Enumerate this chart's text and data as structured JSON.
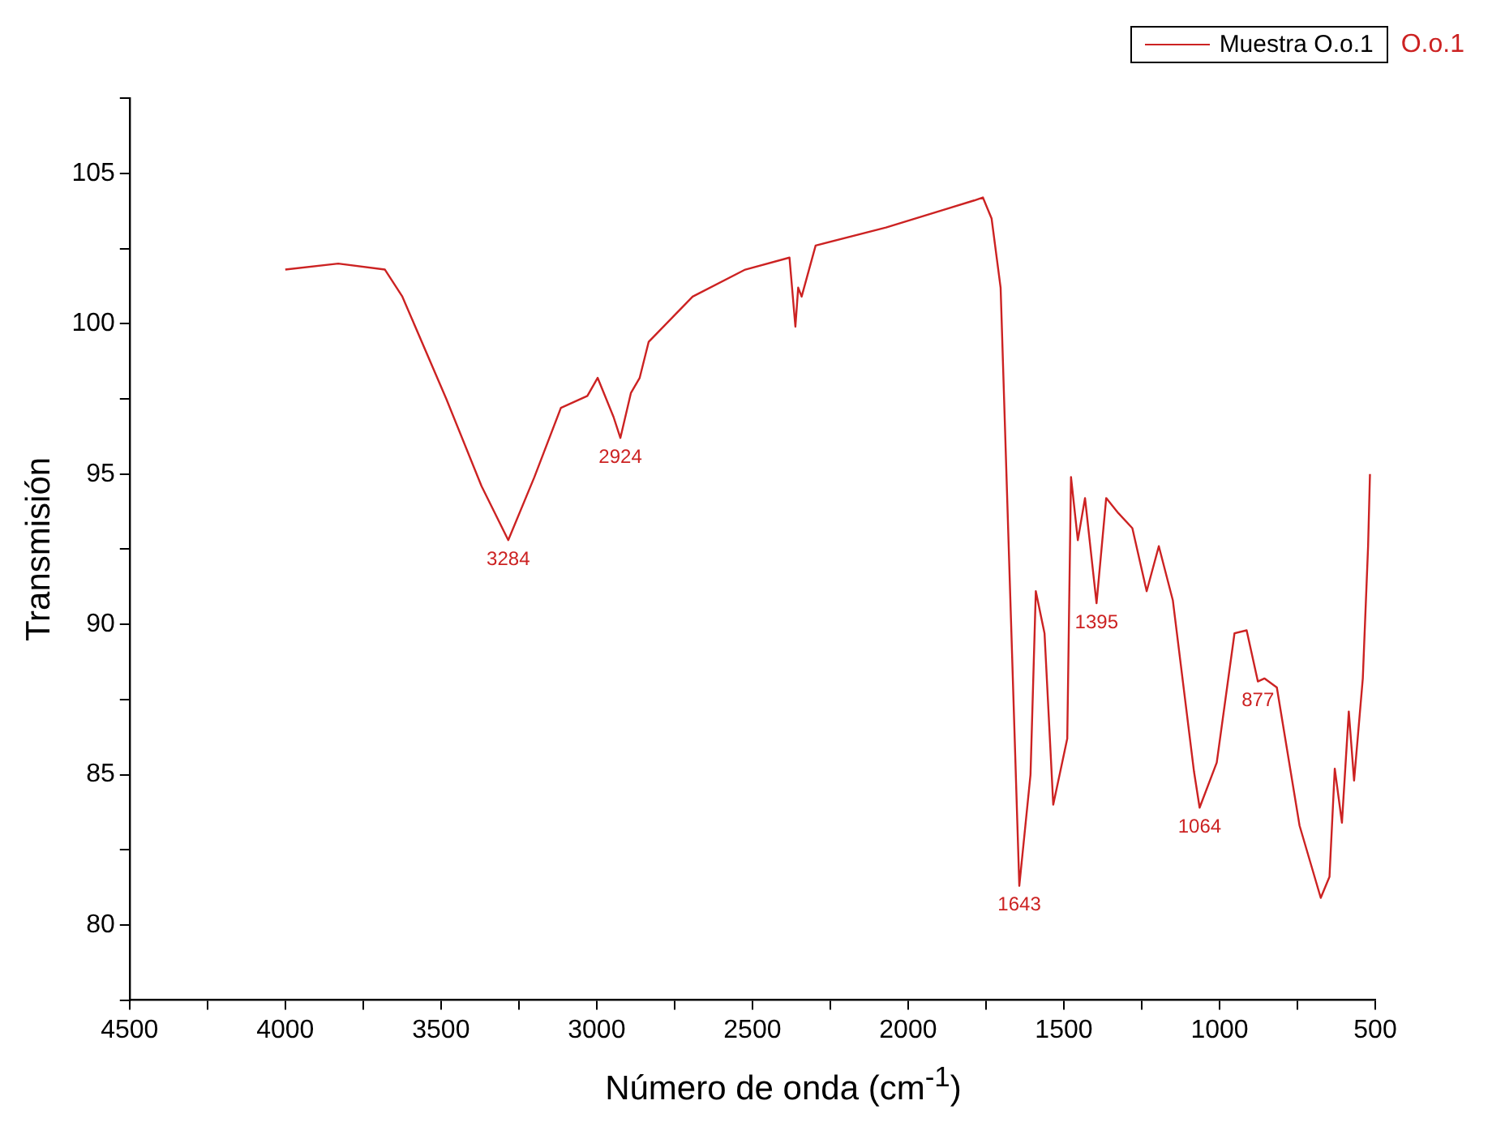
{
  "chart_data": {
    "type": "line",
    "xlabel": "Número de onda (cm$^{-1}$)",
    "ylabel": "Transmisión",
    "xlim": [
      4500,
      500
    ],
    "ylim": [
      77.5,
      107.5
    ],
    "xticks": [
      4500,
      {
        "value": 4250,
        "label": null
      },
      4000,
      {
        "value": 3750,
        "label": null
      },
      3500,
      {
        "value": 3250,
        "label": null
      },
      3000,
      {
        "value": 2750,
        "label": null
      },
      2500,
      {
        "value": 2250,
        "label": null
      },
      2000,
      {
        "value": 1750,
        "label": null
      },
      1500,
      {
        "value": 1250,
        "label": null
      },
      1000,
      {
        "value": 750,
        "label": null
      },
      500
    ],
    "yticks": [
      {
        "value": 77.5,
        "label": null
      },
      80,
      {
        "value": 82.5,
        "label": null
      },
      85,
      {
        "value": 87.5,
        "label": null
      },
      90,
      {
        "value": 92.5,
        "label": null
      },
      95,
      {
        "value": 97.5,
        "label": null
      },
      100,
      {
        "value": 102.5,
        "label": null
      },
      105,
      {
        "value": 107.5,
        "label": null
      }
    ],
    "grid": false,
    "legend": "top right",
    "marker": "none",
    "line_style": "solid",
    "series": [
      {
        "name": "Muestra O.o.1",
        "color": "#cc2222",
        "x": [
          4000,
          3830,
          3680,
          3624,
          3483,
          3370,
          3284,
          3200,
          3115,
          3030,
          2997,
          2946,
          2924,
          2890,
          2862,
          2833,
          2692,
          2523,
          2381,
          2362,
          2353,
          2342,
          2297,
          2071,
          1788,
          1760,
          1732,
          1703,
          1643,
          1607,
          1590,
          1562,
          1534,
          1489,
          1477,
          1455,
          1432,
          1395,
          1364,
          1325,
          1280,
          1234,
          1195,
          1150,
          1082,
          1064,
          1009,
          952,
          913,
          877,
          856,
          816,
          743,
          675,
          647,
          630,
          607,
          585,
          568,
          540,
          523,
          517
        ],
        "values": [
          101.8,
          102.0,
          101.8,
          100.9,
          97.5,
          94.6,
          92.8,
          94.9,
          97.2,
          97.6,
          98.2,
          96.9,
          96.2,
          97.7,
          98.2,
          99.4,
          100.9,
          101.8,
          102.2,
          99.9,
          101.2,
          100.9,
          102.6,
          103.2,
          104.1,
          104.2,
          103.5,
          101.2,
          81.3,
          85.0,
          91.1,
          89.7,
          84.0,
          86.2,
          94.9,
          92.8,
          94.2,
          90.7,
          94.2,
          93.7,
          93.2,
          91.1,
          92.6,
          90.8,
          85.1,
          83.9,
          85.4,
          89.7,
          89.8,
          88.1,
          88.2,
          87.9,
          83.3,
          80.9,
          81.6,
          85.2,
          83.4,
          87.1,
          84.8,
          88.2,
          92.6,
          95.0
        ]
      }
    ],
    "annotations": [
      {
        "text": "3284",
        "x": 3284,
        "y": 92.8
      },
      {
        "text": "2924",
        "x": 2924,
        "y": 96.2
      },
      {
        "text": "1643",
        "x": 1643,
        "y": 81.3
      },
      {
        "text": "1395",
        "x": 1395,
        "y": 90.7
      },
      {
        "text": "1064",
        "x": 1064,
        "y": 83.9
      },
      {
        "text": "877",
        "x": 877,
        "y": 88.1
      },
      "O.o.1"
    ]
  }
}
